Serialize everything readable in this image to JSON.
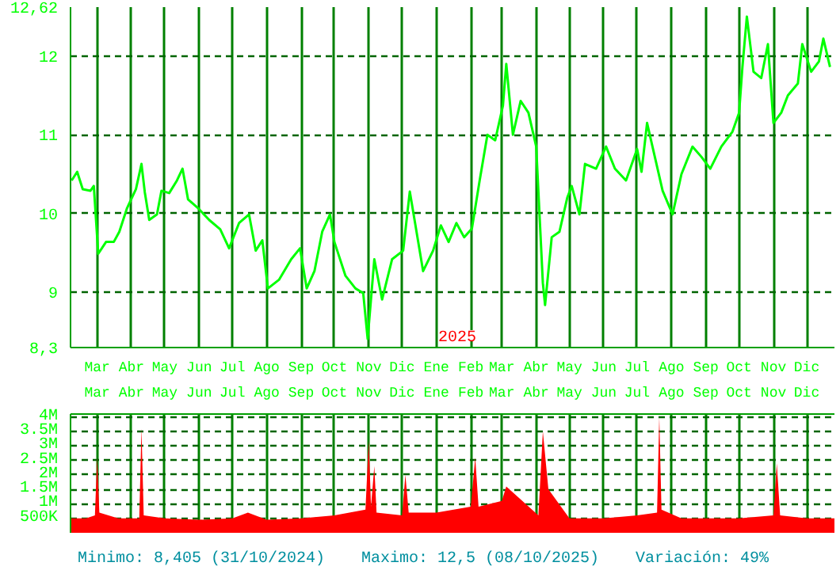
{
  "chart_data": [
    {
      "type": "line",
      "grid": true,
      "xlim": [
        "2024-02-06",
        "2025-12-26"
      ],
      "ylim": [
        8.3,
        12.62
      ],
      "yticks": [
        {
          "value": 8.3,
          "label": "8,3"
        },
        9,
        10,
        11,
        12,
        {
          "value": 12.62,
          "label": "12,62"
        }
      ],
      "xticks": [
        {
          "value": "2024-03-01",
          "label": "Mar"
        },
        {
          "value": "2024-04-01",
          "label": "Abr"
        },
        {
          "value": "2024-05-01",
          "label": "May"
        },
        {
          "value": "2024-06-01",
          "label": "Jun"
        },
        {
          "value": "2024-07-01",
          "label": "Jul"
        },
        {
          "value": "2024-08-01",
          "label": "Ago"
        },
        {
          "value": "2024-09-01",
          "label": "Sep"
        },
        {
          "value": "2024-10-01",
          "label": "Oct"
        },
        {
          "value": "2024-11-01",
          "label": "Nov"
        },
        {
          "value": "2024-12-01",
          "label": "Dic"
        },
        {
          "value": "2025-01-01",
          "label": "Ene"
        },
        {
          "value": "2025-02-01",
          "label": "Feb"
        },
        {
          "value": "2025-03-01",
          "label": "Mar"
        },
        {
          "value": "2025-04-01",
          "label": "Abr"
        },
        {
          "value": "2025-05-01",
          "label": "May"
        },
        {
          "value": "2025-06-01",
          "label": "Jun"
        },
        {
          "value": "2025-07-01",
          "label": "Jul"
        },
        {
          "value": "2025-08-01",
          "label": "Ago"
        },
        {
          "value": "2025-09-01",
          "label": "Sep"
        },
        {
          "value": "2025-10-01",
          "label": "Oct"
        },
        {
          "value": "2025-11-01",
          "label": "Nov"
        },
        {
          "value": "2025-12-01",
          "label": "Dic"
        }
      ],
      "annotations": [
        "2025"
      ],
      "series": [
        {
          "color": "#00ff00",
          "x": [
            "2024-02-07",
            "2024-02-12",
            "2024-02-17",
            "2024-02-24",
            "2024-02-27",
            "2024-03-02",
            "2024-03-09",
            "2024-03-16",
            "2024-03-21",
            "2024-03-28",
            "2024-04-05",
            "2024-04-10",
            "2024-04-13",
            "2024-04-17",
            "2024-04-24",
            "2024-04-28",
            "2024-05-05",
            "2024-05-12",
            "2024-05-17",
            "2024-05-22",
            "2024-05-31",
            "2024-06-10",
            "2024-06-20",
            "2024-06-28",
            "2024-07-07",
            "2024-07-16",
            "2024-07-22",
            "2024-07-28",
            "2024-08-02",
            "2024-08-12",
            "2024-08-23",
            "2024-08-31",
            "2024-09-06",
            "2024-09-13",
            "2024-09-20",
            "2024-09-27",
            "2024-10-01",
            "2024-10-11",
            "2024-10-20",
            "2024-10-27",
            "2024-10-31",
            "2024-11-06",
            "2024-11-13",
            "2024-11-22",
            "2024-12-02",
            "2024-12-08",
            "2024-12-20",
            "2024-12-29",
            "2025-01-05",
            "2025-01-12",
            "2025-01-19",
            "2025-01-26",
            "2025-02-02",
            "2025-02-09",
            "2025-02-16",
            "2025-02-23",
            "2025-03-02",
            "2025-03-05",
            "2025-03-11",
            "2025-03-18",
            "2025-03-25",
            "2025-04-01",
            "2025-04-07",
            "2025-04-09",
            "2025-04-15",
            "2025-04-22",
            "2025-04-29",
            "2025-05-03",
            "2025-05-10",
            "2025-05-15",
            "2025-05-25",
            "2025-06-03",
            "2025-06-11",
            "2025-06-21",
            "2025-07-01",
            "2025-07-05",
            "2025-07-10",
            "2025-07-17",
            "2025-07-24",
            "2025-08-02",
            "2025-08-10",
            "2025-08-20",
            "2025-08-28",
            "2025-09-05",
            "2025-09-15",
            "2025-09-25",
            "2025-10-01",
            "2025-10-04",
            "2025-10-08",
            "2025-10-14",
            "2025-10-21",
            "2025-10-27",
            "2025-11-01",
            "2025-11-08",
            "2025-11-14",
            "2025-11-23",
            "2025-11-27",
            "2025-12-05",
            "2025-12-12",
            "2025-12-16",
            "2025-12-22"
          ],
          "values": [
            10.42,
            10.53,
            10.31,
            10.29,
            10.35,
            9.49,
            9.64,
            9.64,
            9.77,
            10.07,
            10.31,
            10.63,
            10.27,
            9.92,
            9.99,
            10.29,
            10.26,
            10.42,
            10.57,
            10.18,
            10.07,
            9.92,
            9.8,
            9.56,
            9.88,
            9.99,
            9.53,
            9.66,
            9.05,
            9.16,
            9.42,
            9.56,
            9.05,
            9.27,
            9.77,
            9.99,
            9.64,
            9.21,
            9.05,
            8.99,
            8.41,
            9.42,
            8.91,
            9.42,
            9.53,
            10.28,
            9.27,
            9.53,
            9.85,
            9.64,
            9.88,
            9.7,
            9.81,
            10.42,
            11.0,
            10.93,
            11.37,
            11.9,
            11.0,
            11.43,
            11.28,
            10.85,
            9.12,
            8.84,
            9.7,
            9.77,
            10.2,
            10.35,
            9.99,
            10.63,
            10.57,
            10.85,
            10.57,
            10.42,
            10.82,
            10.53,
            11.15,
            10.72,
            10.29,
            9.99,
            10.5,
            10.85,
            10.72,
            10.57,
            10.85,
            11.04,
            11.28,
            11.86,
            12.5,
            11.8,
            11.72,
            12.15,
            11.15,
            11.28,
            11.5,
            11.65,
            12.15,
            11.8,
            11.93,
            12.22,
            11.86
          ]
        }
      ]
    },
    {
      "type": "area",
      "grid": true,
      "xlim": [
        "2024-02-06",
        "2025-12-26"
      ],
      "ylim": [
        0,
        4100000
      ],
      "yticks": [
        {
          "value": 500000,
          "label": "500K"
        },
        {
          "value": 1000000,
          "label": "1M"
        },
        {
          "value": 1500000,
          "label": "1.5M"
        },
        {
          "value": 2000000,
          "label": "2M"
        },
        {
          "value": 2500000,
          "label": "2.5M"
        },
        {
          "value": 3000000,
          "label": "3M"
        },
        {
          "value": 3500000,
          "label": "3.5M"
        },
        {
          "value": 4000000,
          "label": "4M"
        }
      ],
      "xticks": [
        {
          "value": "2024-03-01",
          "label": "Mar"
        },
        {
          "value": "2024-04-01",
          "label": "Abr"
        },
        {
          "value": "2024-05-01",
          "label": "May"
        },
        {
          "value": "2024-06-01",
          "label": "Jun"
        },
        {
          "value": "2024-07-01",
          "label": "Jul"
        },
        {
          "value": "2024-08-01",
          "label": "Ago"
        },
        {
          "value": "2024-09-01",
          "label": "Sep"
        },
        {
          "value": "2024-10-01",
          "label": "Oct"
        },
        {
          "value": "2024-11-01",
          "label": "Nov"
        },
        {
          "value": "2024-12-01",
          "label": "Dic"
        },
        {
          "value": "2025-01-01",
          "label": "Ene"
        },
        {
          "value": "2025-02-01",
          "label": "Feb"
        },
        {
          "value": "2025-03-01",
          "label": "Mar"
        },
        {
          "value": "2025-04-01",
          "label": "Abr"
        },
        {
          "value": "2025-05-01",
          "label": "May"
        },
        {
          "value": "2025-06-01",
          "label": "Jun"
        },
        {
          "value": "2025-07-01",
          "label": "Jul"
        },
        {
          "value": "2025-08-01",
          "label": "Ago"
        },
        {
          "value": "2025-09-01",
          "label": "Sep"
        },
        {
          "value": "2025-10-01",
          "label": "Oct"
        },
        {
          "value": "2025-11-01",
          "label": "Nov"
        },
        {
          "value": "2025-12-01",
          "label": "Dic"
        }
      ],
      "annotations": [
        "Minimo: 8,405 (31/10/2024)",
        "Maximo: 12,5 (08/10/2025)",
        "Variación: 49%"
      ],
      "series": [
        {
          "color": "#ff0000",
          "x": [
            "2024-02-06",
            "2024-02-20",
            "2024-02-28",
            "2024-03-01",
            "2024-03-03",
            "2024-03-20",
            "2024-04-08",
            "2024-04-10",
            "2024-04-12",
            "2024-05-01",
            "2024-06-01",
            "2024-07-01",
            "2024-07-15",
            "2024-08-01",
            "2024-09-01",
            "2024-10-01",
            "2024-10-29",
            "2024-11-01",
            "2024-11-03",
            "2024-11-06",
            "2024-11-08",
            "2024-12-01",
            "2024-12-04",
            "2024-12-07",
            "2025-01-01",
            "2025-02-01",
            "2025-02-05",
            "2025-02-08",
            "2025-03-01",
            "2025-03-05",
            "2025-04-03",
            "2025-04-07",
            "2025-04-12",
            "2025-05-01",
            "2025-06-01",
            "2025-07-01",
            "2025-07-19",
            "2025-07-21",
            "2025-07-23",
            "2025-08-10",
            "2025-09-01",
            "2025-10-01",
            "2025-11-01",
            "2025-11-04",
            "2025-11-07",
            "2025-12-01",
            "2025-12-26"
          ],
          "values": [
            500000,
            500000,
            600000,
            2600000,
            700000,
            500000,
            500000,
            3600000,
            600000,
            500000,
            450000,
            500000,
            700000,
            450000,
            500000,
            600000,
            800000,
            3200000,
            900000,
            2300000,
            700000,
            600000,
            2000000,
            700000,
            700000,
            900000,
            2600000,
            900000,
            1100000,
            1600000,
            600000,
            3500000,
            1500000,
            500000,
            500000,
            600000,
            700000,
            4000000,
            800000,
            500000,
            500000,
            500000,
            600000,
            2400000,
            600000,
            500000,
            500000
          ]
        }
      ]
    }
  ]
}
